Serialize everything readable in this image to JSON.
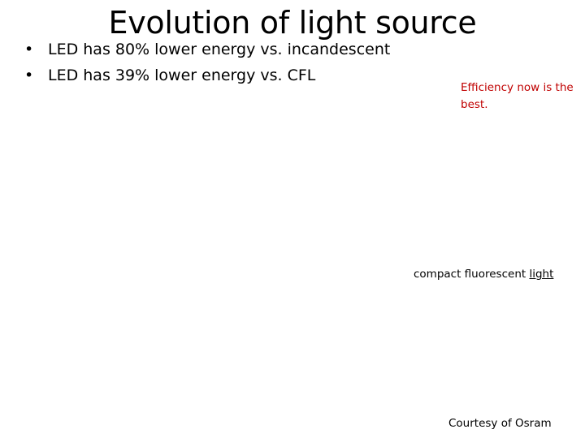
{
  "slide": {
    "title": "Evolution of light source",
    "bullets": [
      {
        "marker": "•",
        "text": "LED has 80% lower energy vs. incandescent"
      },
      {
        "marker": "•",
        "text": "LED has 39% lower energy vs. CFL"
      }
    ],
    "efficiency_note": "Efficiency now is the best.",
    "cfl_caption": {
      "prefix": "compact fluorescent ",
      "link_text": "light"
    },
    "credit": "Courtesy of Osram"
  },
  "colors": {
    "note_text": "#c00000",
    "body_text": "#000000",
    "background": "#ffffff"
  }
}
